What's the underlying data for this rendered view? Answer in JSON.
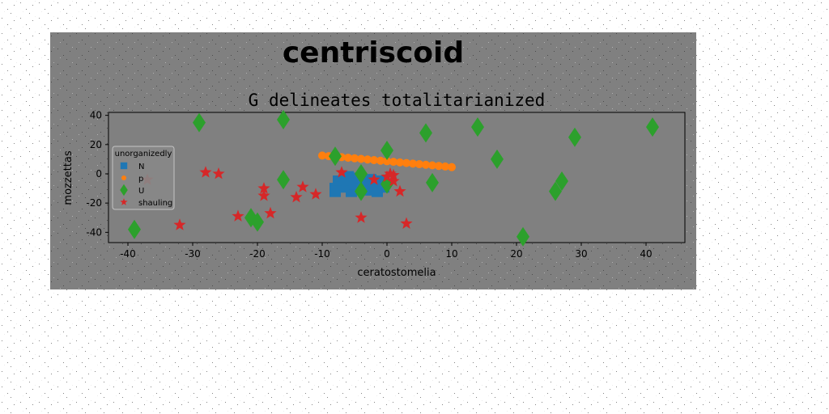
{
  "chart_data": {
    "type": "scatter",
    "suptitle": "centriscoid",
    "title": "G delineates totalitarianized",
    "xlabel": "ceratostomelia",
    "ylabel": "mozzettas",
    "xlim": [
      -43,
      46
    ],
    "ylim": [
      -47,
      42
    ],
    "xticks": [
      -40,
      -30,
      -20,
      -10,
      0,
      10,
      20,
      30,
      40
    ],
    "yticks": [
      -40,
      -20,
      0,
      20,
      40
    ],
    "grid": false,
    "legend": {
      "title": "unorganizedly",
      "placement": "center-left"
    },
    "colors": {
      "figure_bg": "#808080",
      "axes_bg": "#808080"
    },
    "series": [
      {
        "name": "N",
        "marker": "square",
        "color": "#1f77b4",
        "points": [
          [
            -8,
            -10
          ],
          [
            -7.5,
            -5
          ],
          [
            -7,
            -9
          ],
          [
            -6.5,
            -4
          ],
          [
            -6,
            -8
          ],
          [
            -5.5,
            -12
          ],
          [
            -5,
            -7
          ],
          [
            -4.5,
            -3
          ],
          [
            -4,
            -10
          ],
          [
            -3.5,
            -6
          ],
          [
            -3,
            -11
          ],
          [
            -2.5,
            -4
          ],
          [
            -2,
            -8
          ],
          [
            -1.5,
            -12
          ],
          [
            -1,
            -5
          ],
          [
            -0.5,
            -9
          ],
          [
            -8,
            -12
          ],
          [
            -6,
            -2
          ]
        ]
      },
      {
        "name": "p",
        "marker": "circle",
        "color": "#ff7f0e",
        "points": [
          [
            -10,
            12.5
          ],
          [
            -9,
            12.1
          ],
          [
            -8,
            11.8
          ],
          [
            -7,
            11.4
          ],
          [
            -6,
            11.0
          ],
          [
            -5,
            10.6
          ],
          [
            -4,
            10.2
          ],
          [
            -3,
            9.8
          ],
          [
            -2,
            9.4
          ],
          [
            -1,
            9.0
          ],
          [
            0,
            8.6
          ],
          [
            1,
            8.2
          ],
          [
            2,
            7.8
          ],
          [
            3,
            7.4
          ],
          [
            4,
            7.0
          ],
          [
            5,
            6.6
          ],
          [
            6,
            6.2
          ],
          [
            7,
            5.8
          ],
          [
            8,
            5.4
          ],
          [
            9,
            5.0
          ],
          [
            10,
            4.6
          ]
        ]
      },
      {
        "name": "U",
        "marker": "diamond",
        "color": "#2ca02c",
        "points": [
          [
            -29,
            35
          ],
          [
            -16,
            37
          ],
          [
            6,
            28
          ],
          [
            14,
            32
          ],
          [
            17,
            10
          ],
          [
            29,
            25
          ],
          [
            41,
            32
          ],
          [
            -16,
            -4
          ],
          [
            -8,
            12
          ],
          [
            -4,
            0
          ],
          [
            -4,
            -12
          ],
          [
            0,
            16
          ],
          [
            0,
            -7
          ],
          [
            7,
            -6
          ],
          [
            27,
            -5
          ],
          [
            26,
            -12
          ],
          [
            -39,
            -38
          ],
          [
            -21,
            -30
          ],
          [
            -20,
            -33
          ],
          [
            21,
            -43
          ]
        ]
      },
      {
        "name": "shauling",
        "marker": "star",
        "color": "#d62728",
        "points": [
          [
            -37,
            -4
          ],
          [
            -28,
            1
          ],
          [
            -26,
            0
          ],
          [
            -32,
            -35
          ],
          [
            -23,
            -29
          ],
          [
            -18,
            -27
          ],
          [
            -19,
            -10
          ],
          [
            -19,
            -15
          ],
          [
            -14,
            -16
          ],
          [
            -13,
            -9
          ],
          [
            -11,
            -14
          ],
          [
            -7,
            1
          ],
          [
            -4,
            -30
          ],
          [
            -2,
            -4
          ],
          [
            0,
            -2
          ],
          [
            1,
            -1
          ],
          [
            1,
            -5
          ],
          [
            2,
            -12
          ],
          [
            3,
            -34
          ],
          [
            0.5,
            0
          ]
        ]
      }
    ]
  }
}
